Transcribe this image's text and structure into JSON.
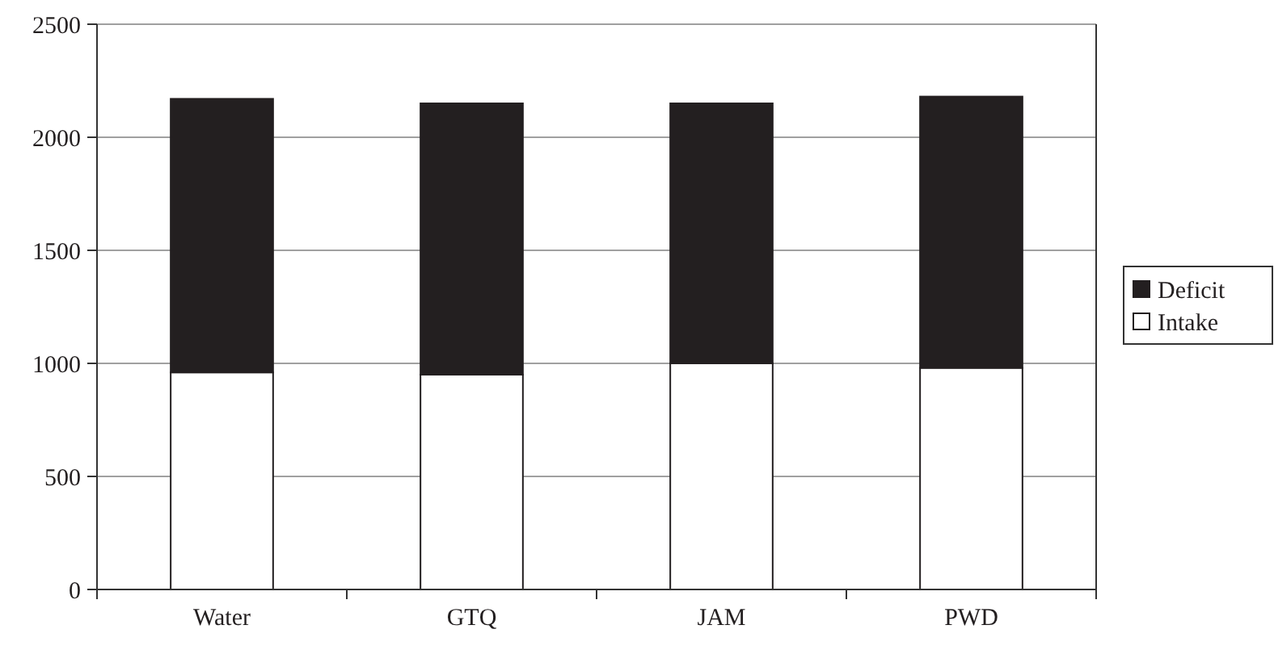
{
  "chart_data": {
    "type": "bar",
    "stacked": true,
    "categories": [
      "Water",
      "GTQ",
      "JAM",
      "PWD"
    ],
    "series": [
      {
        "name": "Intake",
        "color": "#ffffff",
        "values": [
          960,
          950,
          1000,
          980
        ]
      },
      {
        "name": "Deficit",
        "color": "#231f20",
        "values": [
          1210,
          1200,
          1150,
          1200
        ]
      }
    ],
    "ylim": [
      0,
      2500
    ],
    "yticks": [
      0,
      500,
      1000,
      1500,
      2000,
      2500
    ],
    "grid": "y",
    "legend": "right"
  }
}
